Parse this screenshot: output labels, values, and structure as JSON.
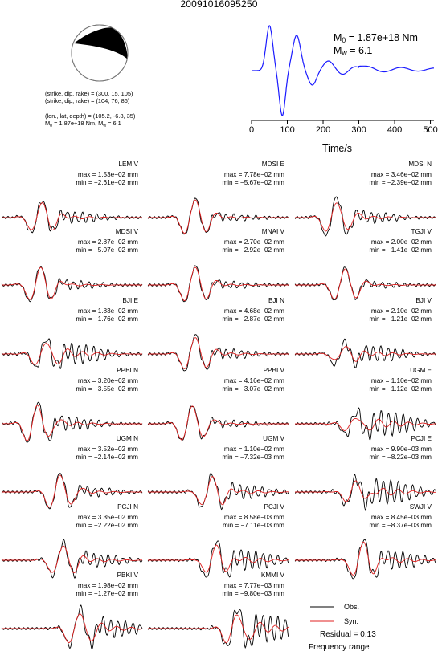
{
  "title": "20091016095250",
  "focal": {
    "line1": "(strike, dip, rake) = (300, 15, 105)",
    "line2": "(strike, dip, rake) = (104, 76, 86)",
    "line3": "(lon., lat, depth) = (105.2, -6.8, 35)",
    "line4_prefix": "M",
    "line4_sub": "0",
    "line4_mid": " = 1.87e+18 Nm, M",
    "line4_sub2": "w",
    "line4_tail": " = 6.1"
  },
  "stf": {
    "m0_prefix": "M",
    "m0_sub": "0",
    "m0_value": " = 1.87e+18 Nm",
    "mw_prefix": "M",
    "mw_sub": "w",
    "mw_value": " = 6.1",
    "xlabel": "Time/s",
    "xticks": [
      "0",
      "100",
      "200",
      "300",
      "400",
      "500"
    ],
    "color": "#1a1aff"
  },
  "colors": {
    "obs": "#000000",
    "syn": "#e02020"
  },
  "panels": [
    {
      "name": "LEM V",
      "max": "max = 1.53e−02 mm",
      "min": "min = −2.61e−02 mm"
    },
    {
      "name": "MDSI E",
      "max": "max = 7.78e−02 mm",
      "min": "min = −5.67e−02 mm"
    },
    {
      "name": "MDSI N",
      "max": "max = 3.46e−02 mm",
      "min": "min = −2.39e−02 mm"
    },
    {
      "name": "MDSI V",
      "max": "max = 2.87e−02 mm",
      "min": "min = −5.07e−02 mm"
    },
    {
      "name": "MNAI V",
      "max": "max = 2.70e−02 mm",
      "min": "min = −2.92e−02 mm"
    },
    {
      "name": "TGJI V",
      "max": "max = 2.00e−02 mm",
      "min": "min = −1.41e−02 mm"
    },
    {
      "name": "BJI E",
      "max": "max = 1.83e−02 mm",
      "min": "min = −1.76e−02 mm"
    },
    {
      "name": "BJI N",
      "max": "max = 4.68e−02 mm",
      "min": "min = −2.87e−02 mm"
    },
    {
      "name": "BJI V",
      "max": "max = 2.10e−02 mm",
      "min": "min = −1.21e−02 mm"
    },
    {
      "name": "PPBI N",
      "max": "max = 3.20e−02 mm",
      "min": "min = −3.55e−02 mm"
    },
    {
      "name": "PPBI V",
      "max": "max = 4.16e−02 mm",
      "min": "min = −3.07e−02 mm"
    },
    {
      "name": "UGM E",
      "max": "max = 1.10e−02 mm",
      "min": "min = −1.12e−02 mm"
    },
    {
      "name": "UGM N",
      "max": "max = 3.52e−02 mm",
      "min": "min = −2.14e−02 mm"
    },
    {
      "name": "UGM V",
      "max": "max = 1.10e−02 mm",
      "min": "min = −7.32e−03 mm"
    },
    {
      "name": "PCJI E",
      "max": "max = 9.90e−03 mm",
      "min": "min = −8.22e−03 mm"
    },
    {
      "name": "PCJI N",
      "max": "max = 3.35e−02 mm",
      "min": "min = −2.22e−02 mm"
    },
    {
      "name": "PCJI V",
      "max": "max = 8.58e−03 mm",
      "min": "min = −7.11e−03 mm"
    },
    {
      "name": "SWJI V",
      "max": "max = 8.45e−03 mm",
      "min": "min = −8.37e−03 mm"
    },
    {
      "name": "PBKI V",
      "max": "max = 1.98e−02 mm",
      "min": "min = −1.27e−02 mm"
    },
    {
      "name": "KMMI V",
      "max": "max = 7.77e−03 mm",
      "min": "min = −9.80e−03 mm"
    }
  ],
  "legend": {
    "obs": "Obs.",
    "syn": "Syn."
  },
  "residual": "Residual = 0.13",
  "frequency": "Frequency range"
}
